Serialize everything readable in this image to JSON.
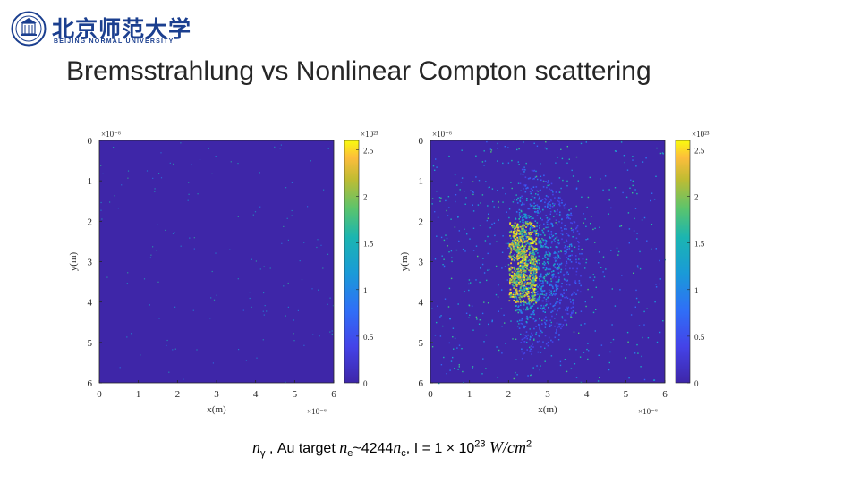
{
  "header": {
    "logo_cn": "北京师范大学",
    "logo_en": "BEIJING NORMAL UNIVERSITY",
    "title": "Bremsstrahlung vs Nonlinear Compton scattering"
  },
  "caption": {
    "n_symbol": "n",
    "n_sub": "γ",
    "text_mid": ", Au target",
    "ne_expr": "n",
    "ne_sub": "e",
    "ne_approx": "~4244",
    "nc_expr": "n",
    "nc_sub": "c",
    "intensity_expr": ", I = 1 × 10",
    "intensity_exp": "23",
    "units": "W/cm",
    "units_exp": "2"
  },
  "colors": {
    "map_background": "#3e26a8",
    "colorbar_low": "#3e26a8",
    "colorbar_high": "#f9fb0e",
    "axis": "#262626"
  },
  "chart_data": [
    {
      "type": "heatmap",
      "panel": "left",
      "xlabel": "x(m)",
      "ylabel": "y(m)",
      "x_exponent": "×10⁻⁶",
      "y_exponent": "×10⁻⁶",
      "xlim": [
        0,
        6
      ],
      "ylim": [
        0,
        6
      ],
      "y_reversed": true,
      "x_ticks": [
        "0",
        "1",
        "2",
        "3",
        "4",
        "5",
        "6"
      ],
      "y_ticks": [
        "0",
        "1",
        "2",
        "3",
        "4",
        "5",
        "6"
      ],
      "colorbar": {
        "exponent": "×10²³",
        "ticks": [
          "0",
          "0.5",
          "1",
          "1.5",
          "2",
          "2.5"
        ],
        "range": [
          0,
          2.6
        ],
        "colormap": "parula"
      },
      "description_level": "sparse",
      "sparse_point_density": 0.06,
      "dense_regions": []
    },
    {
      "type": "heatmap",
      "panel": "right",
      "xlabel": "x(m)",
      "ylabel": "y(m)",
      "x_exponent": "×10⁻⁶",
      "y_exponent": "×10⁻⁶",
      "xlim": [
        0,
        6
      ],
      "ylim": [
        0,
        6
      ],
      "y_reversed": true,
      "x_ticks": [
        "0",
        "1",
        "2",
        "3",
        "4",
        "5",
        "6"
      ],
      "y_ticks": [
        "0",
        "1",
        "2",
        "3",
        "4",
        "5",
        "6"
      ],
      "colorbar": {
        "exponent": "×10²³",
        "ticks": [
          "0",
          "0.5",
          "1",
          "1.5",
          "2",
          "2.5"
        ],
        "range": [
          0,
          2.6
        ],
        "colormap": "parula"
      },
      "description_level": "dense",
      "arc_center": [
        2.0,
        3.0
      ],
      "arc_radii": [
        0.4,
        0.7,
        1.0,
        1.3,
        1.6,
        1.9
      ],
      "hotspot_x_range": [
        2.0,
        2.7
      ],
      "hotspot_y_range": [
        2.0,
        4.0
      ]
    }
  ]
}
